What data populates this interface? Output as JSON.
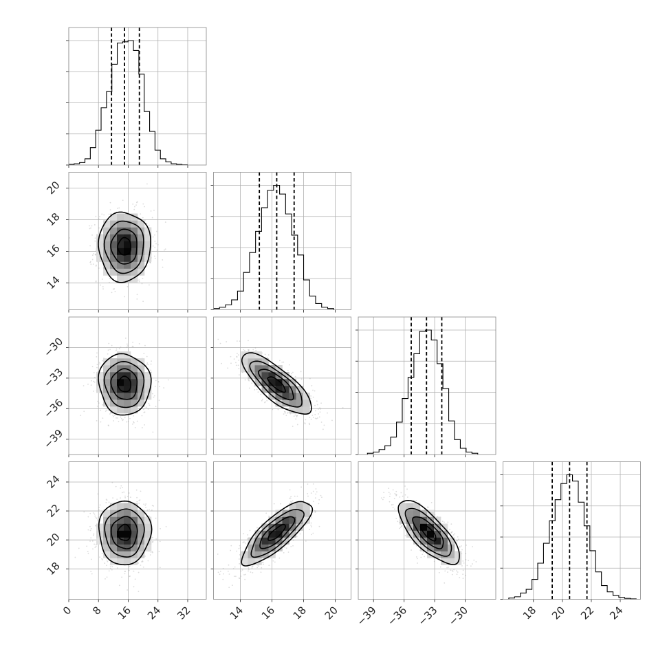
{
  "chart_data": {
    "type": "corner",
    "grid": true,
    "parameters": [
      {
        "index": 0,
        "range": [
          0,
          37
        ],
        "ticks": [
          0,
          8,
          16,
          24,
          32
        ],
        "tick_labels": [
          "0",
          "8",
          "16",
          "24",
          "32"
        ],
        "mean": 15,
        "sigma": 3.5,
        "quantiles": [
          11.5,
          15.0,
          19.0
        ]
      },
      {
        "index": 1,
        "range": [
          12.3,
          21.0
        ],
        "ticks": [
          14,
          16,
          18,
          20
        ],
        "tick_labels": [
          "14",
          "16",
          "18",
          "20"
        ],
        "mean": 16.3,
        "sigma": 1.1,
        "quantiles": [
          15.2,
          16.3,
          17.4
        ]
      },
      {
        "index": 2,
        "range": [
          -40.5,
          -27.0
        ],
        "ticks": [
          -39,
          -36,
          -33,
          -30
        ],
        "tick_labels": [
          "−39",
          "−36",
          "−33",
          "−30"
        ],
        "mean": -33.6,
        "sigma": 1.5,
        "quantiles": [
          -35.3,
          -33.8,
          -32.3
        ]
      },
      {
        "index": 3,
        "range": [
          15.9,
          25.4
        ],
        "ticks": [
          18,
          20,
          22,
          24
        ],
        "tick_labels": [
          "18",
          "20",
          "22",
          "24"
        ],
        "mean": 20.5,
        "sigma": 1.1,
        "quantiles": [
          19.3,
          20.5,
          21.7
        ]
      }
    ],
    "histograms": [
      {
        "param": 0,
        "bin_start": 0,
        "bin_width": 1.45,
        "counts": [
          0.005,
          0.01,
          0.02,
          0.05,
          0.14,
          0.28,
          0.46,
          0.59,
          0.81,
          0.98,
          0.99,
          1.0,
          0.92,
          0.73,
          0.43,
          0.27,
          0.12,
          0.05,
          0.025,
          0.01,
          0.005,
          0.002
        ]
      },
      {
        "param": 1,
        "bin_start": 12.3,
        "bin_width": 0.38,
        "counts": [
          0.01,
          0.02,
          0.04,
          0.08,
          0.15,
          0.3,
          0.46,
          0.63,
          0.82,
          0.96,
          1.0,
          0.93,
          0.77,
          0.6,
          0.44,
          0.24,
          0.11,
          0.05,
          0.02,
          0.01
        ]
      },
      {
        "param": 2,
        "bin_start": -39.6,
        "bin_width": 0.57,
        "counts": [
          0.01,
          0.02,
          0.04,
          0.07,
          0.14,
          0.26,
          0.45,
          0.62,
          0.81,
          0.99,
          1.0,
          0.92,
          0.73,
          0.53,
          0.27,
          0.12,
          0.05,
          0.02,
          0.01
        ]
      },
      {
        "param": 3,
        "bin_start": 16.3,
        "bin_width": 0.4,
        "counts": [
          0.01,
          0.02,
          0.05,
          0.08,
          0.16,
          0.29,
          0.45,
          0.63,
          0.8,
          0.93,
          1.0,
          0.95,
          0.78,
          0.59,
          0.39,
          0.22,
          0.11,
          0.06,
          0.03,
          0.015,
          0.007,
          0.003
        ]
      }
    ],
    "pairs": [
      {
        "x": 0,
        "y": 1,
        "correlation": 0.0
      },
      {
        "x": 0,
        "y": 2,
        "correlation": -0.05
      },
      {
        "x": 1,
        "y": 2,
        "correlation": -0.78
      },
      {
        "x": 0,
        "y": 3,
        "correlation": 0.0
      },
      {
        "x": 1,
        "y": 3,
        "correlation": 0.8
      },
      {
        "x": 2,
        "y": 3,
        "correlation": -0.75
      }
    ]
  }
}
